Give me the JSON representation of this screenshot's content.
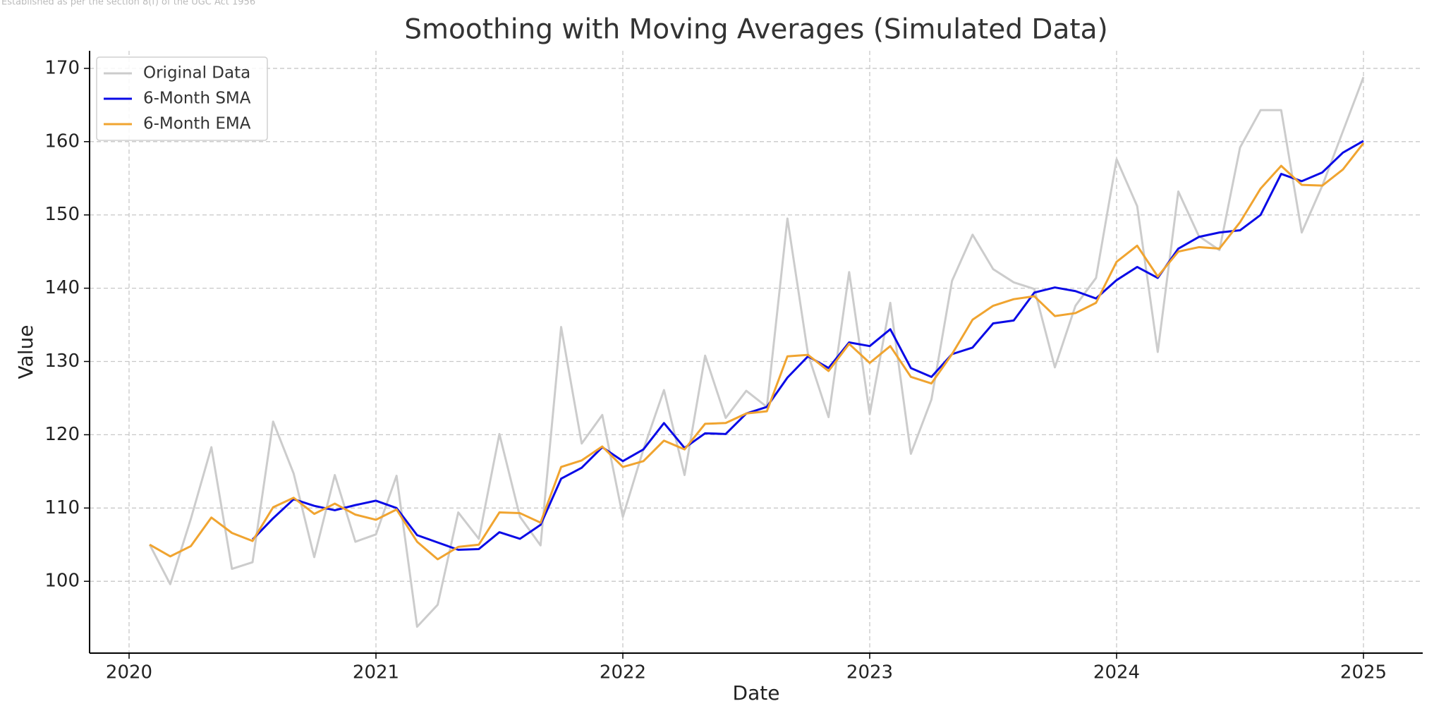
{
  "chart_data": {
    "type": "line",
    "watermark": "Established as per the section 8(f) of the UGC Act 1956",
    "title": "Smoothing with Moving Averages (Simulated Data)",
    "xlabel": "Date",
    "ylabel": "Value",
    "x": [
      "2020-01",
      "2020-02",
      "2020-03",
      "2020-04",
      "2020-05",
      "2020-06",
      "2020-07",
      "2020-08",
      "2020-09",
      "2020-10",
      "2020-11",
      "2020-12",
      "2021-01",
      "2021-02",
      "2021-03",
      "2021-04",
      "2021-05",
      "2021-06",
      "2021-07",
      "2021-08",
      "2021-09",
      "2021-10",
      "2021-11",
      "2021-12",
      "2022-01",
      "2022-02",
      "2022-03",
      "2022-04",
      "2022-05",
      "2022-06",
      "2022-07",
      "2022-08",
      "2022-09",
      "2022-10",
      "2022-11",
      "2022-12",
      "2023-01",
      "2023-02",
      "2023-03",
      "2023-04",
      "2023-05",
      "2023-06",
      "2023-07",
      "2023-08",
      "2023-09",
      "2023-10",
      "2023-11",
      "2023-12",
      "2024-01",
      "2024-02",
      "2024-03",
      "2024-04",
      "2024-05",
      "2024-06",
      "2024-07",
      "2024-08",
      "2024-09",
      "2024-10",
      "2024-11",
      "2024-12"
    ],
    "series": [
      {
        "name": "Original Data",
        "color": "#cccccc",
        "width": 3,
        "values": [
          105,
          99.6,
          108.5,
          118.3,
          101.7,
          102.6,
          121.8,
          114.7,
          103.3,
          114.5,
          105.4,
          106.4,
          114.4,
          93.8,
          96.8,
          109.4,
          105.8,
          120.1,
          108.8,
          104.9,
          134.7,
          118.8,
          122.7,
          108.8,
          118,
          126.1,
          114.5,
          130.8,
          122.3,
          126,
          123.8,
          149.5,
          131,
          122.4,
          142.2,
          122.8,
          138,
          117.4,
          124.8,
          141,
          147.3,
          142.6,
          140.8,
          139.9,
          129.2,
          137.6,
          141.4,
          157.6,
          151.2,
          131.3,
          153.2,
          147.1,
          145.2,
          159.2,
          164.3,
          164.3,
          147.6,
          154,
          161.4,
          168.8
        ]
      },
      {
        "name": "6-Month SMA",
        "color": "#0a0ae6",
        "width": 3,
        "values": [
          null,
          null,
          null,
          null,
          null,
          105.7,
          108.6,
          111.2,
          110.3,
          109.7,
          110.4,
          111,
          110,
          106.3,
          105.3,
          104.3,
          104.4,
          106.7,
          105.8,
          107.7,
          114,
          115.5,
          118.3,
          116.4,
          118,
          121.6,
          118.2,
          120.2,
          120.1,
          122.9,
          123.8,
          127.8,
          130.7,
          129.1,
          132.6,
          132.1,
          134.4,
          129.1,
          127.9,
          131,
          131.9,
          135.2,
          135.6,
          139.4,
          140.1,
          139.6,
          138.6,
          141.1,
          142.9,
          141.4,
          145.4,
          147,
          147.6,
          147.9,
          150,
          155.6,
          154.6,
          155.8,
          158.5,
          160.1
        ]
      },
      {
        "name": "6-Month EMA",
        "color": "#f0a430",
        "width": 3,
        "values": [
          105,
          103.4,
          104.8,
          108.7,
          106.6,
          105.5,
          110.1,
          111.4,
          109.2,
          110.6,
          109.1,
          108.4,
          109.8,
          105.4,
          103,
          104.7,
          105,
          109.4,
          109.3,
          108,
          115.6,
          116.5,
          118.4,
          115.6,
          116.4,
          119.2,
          118,
          121.5,
          121.6,
          122.9,
          123.2,
          130.7,
          130.9,
          128.7,
          132.4,
          129.8,
          132.1,
          127.9,
          127,
          131,
          135.7,
          137.6,
          138.5,
          138.9,
          136.2,
          136.6,
          138,
          143.6,
          145.8,
          141.6,
          145,
          145.6,
          145.4,
          149,
          153.6,
          156.7,
          154.1,
          154,
          156.2,
          159.8
        ]
      }
    ],
    "xlim": [
      2019.84,
      2025.24
    ],
    "xticks": [
      2020,
      2021,
      2022,
      2023,
      2024,
      2025
    ],
    "ylim": [
      90.2,
      172.4
    ],
    "yticks": [
      100,
      110,
      120,
      130,
      140,
      150,
      160,
      170
    ],
    "grid": true,
    "legend": "upper left"
  }
}
